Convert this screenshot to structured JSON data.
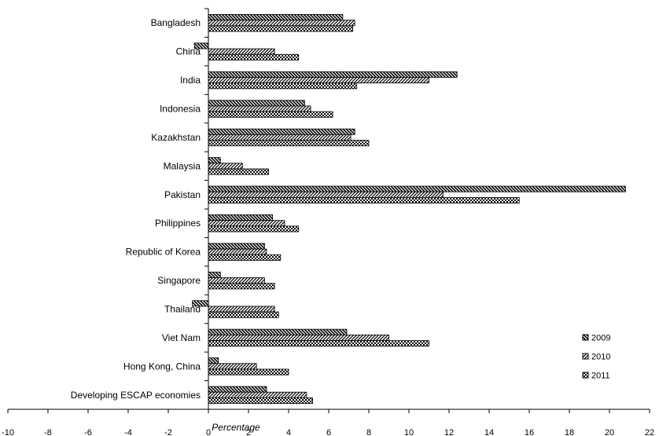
{
  "chart_data": {
    "type": "bar",
    "orientation": "horizontal",
    "title": "",
    "xlabel": "Percentage",
    "ylabel": "",
    "xlim": [
      -10,
      22
    ],
    "xticks": [
      -10,
      -8,
      -6,
      -4,
      -2,
      0,
      2,
      4,
      6,
      8,
      10,
      12,
      14,
      16,
      18,
      20,
      22
    ],
    "grid": false,
    "legend_position": "right",
    "categories": [
      "Bangladesh",
      "China",
      "India",
      "Indonesia",
      "Kazakhstan",
      "Malaysia",
      "Pakistan",
      "Philippines",
      "Republic of Korea",
      "Singapore",
      "Thailand",
      "Viet Nam",
      "Hong Kong, China",
      "Developing ESCAP economies"
    ],
    "series": [
      {
        "name": "2009",
        "pattern": "diag-back",
        "values": [
          6.7,
          -0.7,
          12.4,
          4.8,
          7.3,
          0.6,
          20.8,
          3.2,
          2.8,
          0.6,
          -0.8,
          6.9,
          0.5,
          2.9
        ]
      },
      {
        "name": "2010",
        "pattern": "diag-fwd",
        "values": [
          7.3,
          3.3,
          11.0,
          5.1,
          7.1,
          1.7,
          11.7,
          3.8,
          2.9,
          2.8,
          3.3,
          9.0,
          2.4,
          4.9
        ]
      },
      {
        "name": "2011",
        "pattern": "dots",
        "values": [
          7.2,
          4.5,
          7.4,
          6.2,
          8.0,
          3.0,
          15.5,
          4.5,
          3.6,
          3.3,
          3.5,
          11.0,
          4.0,
          5.2
        ]
      }
    ]
  }
}
